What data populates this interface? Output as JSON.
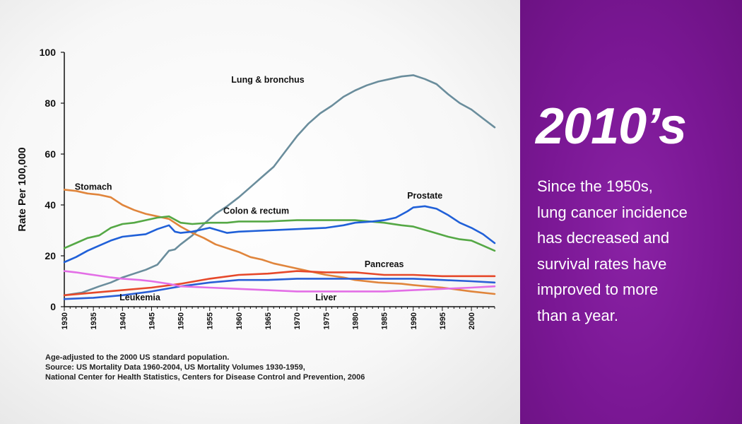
{
  "chart_data": {
    "type": "line",
    "ylabel": "Rate Per 100,000",
    "xlabel": "",
    "ylim": [
      0,
      100
    ],
    "xlim": [
      1930,
      2004
    ],
    "yticks": [
      0,
      20,
      40,
      60,
      80,
      100
    ],
    "xticks": [
      1930,
      1935,
      1940,
      1945,
      1950,
      1955,
      1960,
      1965,
      1970,
      1975,
      1980,
      1985,
      1990,
      1995,
      2000
    ],
    "grid": false,
    "series": [
      {
        "name": "Lung & bronchus",
        "color": "#6a8d9c",
        "x": [
          1930,
          1933,
          1936,
          1938,
          1940,
          1942,
          1944,
          1946,
          1948,
          1949,
          1950,
          1952,
          1954,
          1956,
          1958,
          1960,
          1962,
          1964,
          1966,
          1968,
          1970,
          1972,
          1974,
          1976,
          1978,
          1980,
          1982,
          1984,
          1986,
          1988,
          1990,
          1992,
          1994,
          1996,
          1998,
          2000,
          2002,
          2004
        ],
        "values": [
          4.5,
          5.5,
          8,
          9.5,
          11.5,
          13,
          14.5,
          16.5,
          22,
          22.5,
          24.5,
          28,
          32.5,
          36.5,
          39.5,
          43,
          47,
          51,
          55,
          61,
          67,
          72,
          76,
          79,
          82.5,
          85,
          87,
          88.5,
          89.5,
          90.5,
          91,
          89.5,
          87.5,
          83.5,
          80,
          77.5,
          74,
          70.5
        ]
      },
      {
        "name": "Stomach",
        "color": "#e0853c",
        "x": [
          1930,
          1932,
          1934,
          1936,
          1938,
          1940,
          1942,
          1944,
          1946,
          1948,
          1950,
          1952,
          1954,
          1956,
          1958,
          1960,
          1962,
          1964,
          1966,
          1968,
          1970,
          1972,
          1975,
          1978,
          1980,
          1984,
          1988,
          1990,
          1995,
          2000,
          2004
        ],
        "values": [
          46,
          45.5,
          44.5,
          44,
          43,
          40,
          38,
          36.5,
          35.5,
          34.5,
          31.5,
          29,
          27,
          24.5,
          23,
          21.5,
          19.5,
          18.5,
          17,
          16,
          15,
          14,
          12.5,
          11.5,
          10.5,
          9.5,
          9,
          8.5,
          7.5,
          6,
          5
        ]
      },
      {
        "name": "Colon & rectum",
        "color": "#55a845",
        "x": [
          1930,
          1932,
          1934,
          1936,
          1938,
          1940,
          1942,
          1944,
          1946,
          1948,
          1950,
          1952,
          1955,
          1958,
          1960,
          1965,
          1970,
          1975,
          1978,
          1980,
          1985,
          1988,
          1990,
          1993,
          1996,
          1998,
          2000,
          2002,
          2004
        ],
        "values": [
          23,
          25,
          27,
          28,
          31,
          32.5,
          33,
          34,
          35,
          35.5,
          33,
          32.5,
          33,
          33,
          33.5,
          33.5,
          34,
          34,
          34,
          34,
          33,
          32,
          31.5,
          29.5,
          27.5,
          26.5,
          26,
          24,
          22
        ]
      },
      {
        "name": "Prostate",
        "color": "#2060d8",
        "x": [
          1930,
          1932,
          1934,
          1936,
          1938,
          1940,
          1942,
          1944,
          1946,
          1948,
          1949,
          1950,
          1952,
          1955,
          1958,
          1960,
          1965,
          1970,
          1975,
          1978,
          1980,
          1983,
          1985,
          1987,
          1989,
          1990,
          1992,
          1994,
          1996,
          1998,
          2000,
          2002,
          2004
        ],
        "values": [
          17.5,
          19.5,
          22,
          24,
          26,
          27.5,
          28,
          28.5,
          30.5,
          32,
          29.5,
          29,
          29.5,
          31,
          29,
          29.5,
          30,
          30.5,
          31,
          32,
          33,
          33.5,
          34,
          35,
          37.5,
          39,
          39.5,
          38.5,
          36,
          33,
          31,
          28.5,
          25
        ]
      },
      {
        "name": "Pancreas",
        "color": "#e6482a",
        "x": [
          1930,
          1935,
          1940,
          1945,
          1950,
          1955,
          1960,
          1965,
          1970,
          1975,
          1980,
          1985,
          1990,
          1995,
          2000,
          2004
        ],
        "values": [
          4.5,
          5.5,
          6.5,
          7.5,
          9,
          11,
          12.5,
          13,
          14,
          13.5,
          13.5,
          12.5,
          12.5,
          12,
          12,
          12
        ]
      },
      {
        "name": "Leukemia",
        "color": "#2a5fd6",
        "x": [
          1930,
          1935,
          1940,
          1945,
          1950,
          1955,
          1960,
          1965,
          1970,
          1975,
          1980,
          1985,
          1990,
          1995,
          2000,
          2004
        ],
        "values": [
          3,
          3.5,
          4.5,
          6,
          8,
          9.5,
          10.5,
          10.5,
          11,
          11,
          11,
          11,
          11,
          10.5,
          10,
          9.5
        ]
      },
      {
        "name": "Liver",
        "color": "#e36ee6",
        "x": [
          1930,
          1932,
          1935,
          1938,
          1940,
          1943,
          1945,
          1948,
          1950,
          1955,
          1960,
          1965,
          1970,
          1975,
          1980,
          1985,
          1990,
          1995,
          2000,
          2004
        ],
        "values": [
          14,
          13.5,
          12.5,
          11.5,
          11,
          10.5,
          10,
          9,
          8,
          7.5,
          7,
          6.5,
          6,
          6,
          6,
          6,
          6.5,
          7,
          7.5,
          8
        ]
      }
    ],
    "annotations": [
      {
        "text": "Lung & bronchus",
        "x": 1965,
        "y": 88
      },
      {
        "text": "Stomach",
        "x": 1935,
        "y": 46
      },
      {
        "text": "Colon & rectum",
        "x": 1963,
        "y": 36.5
      },
      {
        "text": "Prostate",
        "x": 1992,
        "y": 42.5
      },
      {
        "text": "Pancreas",
        "x": 1985,
        "y": 15.5
      },
      {
        "text": "Leukemia",
        "x": 1943,
        "y": 2.5
      },
      {
        "text": "Liver",
        "x": 1975,
        "y": 2.5
      }
    ]
  },
  "footnote": {
    "line1": "Age-adjusted to the 2000 US standard population.",
    "line2": "Source:  US Mortality Data 1960-2004, US Mortality Volumes 1930-1959,",
    "line3": "National Center for Health Statistics, Centers for Disease Control and Prevention, 2006"
  },
  "side_panel": {
    "heading": "2010’s",
    "text_lines": [
      "Since the 1950s,",
      "lung cancer incidence",
      "has decreased and",
      "survival rates have",
      "improved to more",
      "than a year."
    ],
    "background": "#7a1794"
  }
}
